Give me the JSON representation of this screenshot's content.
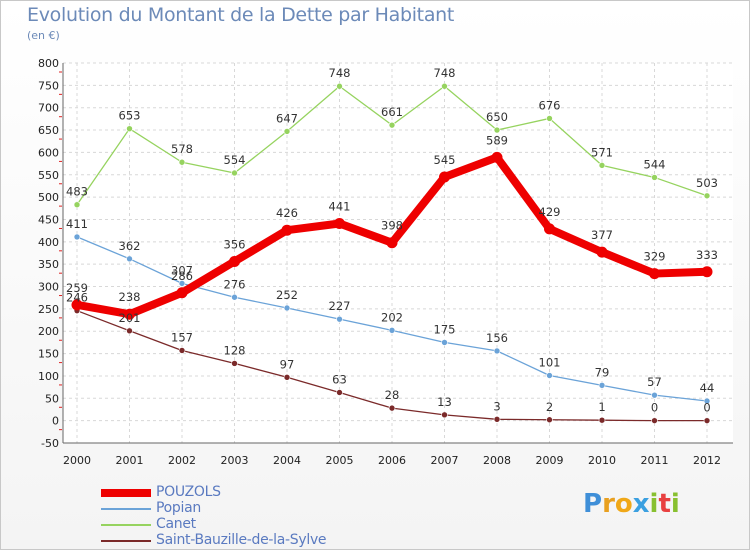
{
  "chart_data": {
    "type": "line",
    "title": "Evolution du Montant de la Dette par Habitant",
    "subtitle": "(en €)",
    "x": [
      "2000",
      "2001",
      "2002",
      "2003",
      "2004",
      "2005",
      "2006",
      "2007",
      "2008",
      "2009",
      "2010",
      "2011",
      "2012"
    ],
    "ylim": [
      -50,
      800
    ],
    "yticks": [
      "-50",
      "0",
      "50",
      "100",
      "150",
      "200",
      "250",
      "300",
      "350",
      "400",
      "450",
      "500",
      "550",
      "600",
      "650",
      "700",
      "750",
      "800"
    ],
    "grid": true,
    "legend_position": "bottom-left",
    "series": [
      {
        "name": "POUZOLS",
        "color": "#ee0000",
        "values": [
          259,
          238,
          286,
          356,
          426,
          441,
          398,
          545,
          589,
          429,
          377,
          329,
          333
        ],
        "labels": [
          "259",
          "238",
          "286",
          "356",
          "426",
          "441",
          "398",
          "545",
          "589",
          "429",
          "377",
          "329",
          "333"
        ]
      },
      {
        "name": "Popian",
        "color": "#6ba3d8",
        "values": [
          411,
          362,
          307,
          276,
          252,
          227,
          202,
          175,
          156,
          101,
          79,
          57,
          44
        ],
        "labels": [
          "411",
          "362",
          "307",
          "276",
          "252",
          "227",
          "202",
          "175",
          "156",
          "101",
          "79",
          "57",
          "44"
        ]
      },
      {
        "name": "Canet",
        "color": "#96d35f",
        "values": [
          483,
          653,
          578,
          554,
          647,
          748,
          661,
          748,
          650,
          676,
          571,
          544,
          503
        ],
        "labels": [
          "483",
          "653",
          "578",
          "554",
          "647",
          "748",
          "661",
          "748",
          "650",
          "676",
          "571",
          "544",
          "503"
        ]
      },
      {
        "name": "Saint-Bauzille-de-la-Sylve",
        "color": "#7b2a2a",
        "values": [
          246,
          201,
          157,
          128,
          97,
          63,
          28,
          13,
          3,
          2,
          1,
          0,
          0
        ],
        "labels": [
          "246",
          "201",
          "157",
          "128",
          "97",
          "63",
          "28",
          "13",
          "3",
          "2",
          "1",
          "0",
          "0"
        ]
      }
    ]
  },
  "brand": {
    "text": "Proxiti",
    "letters": [
      "P",
      "r",
      "o",
      "x",
      "i",
      "t",
      "i"
    ]
  }
}
